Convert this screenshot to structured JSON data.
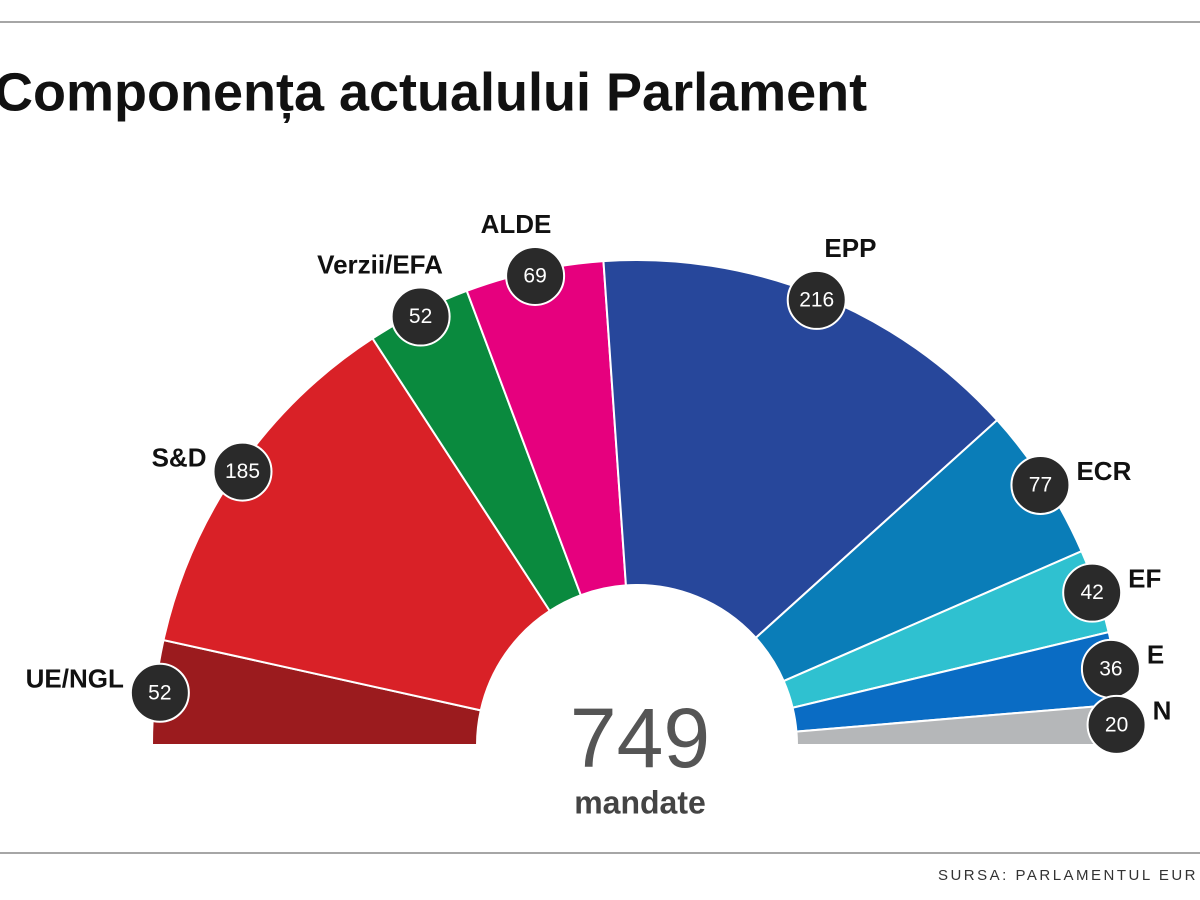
{
  "chart_data": {
    "type": "parliament",
    "title": "Componența actualului Parlament",
    "categories": [
      "UE/NGL",
      "S&D",
      "Verzii/EFA",
      "ALDE",
      "EPP",
      "ECR",
      "EF",
      "E",
      "N"
    ],
    "values": [
      52,
      185,
      52,
      69,
      216,
      77,
      42,
      36,
      20
    ],
    "colors": [
      "#9b1b1e",
      "#d92127",
      "#0a8a3e",
      "#e6007e",
      "#27479b",
      "#0a7db8",
      "#2fc1d0",
      "#0a6cc4",
      "#b5b7b9"
    ],
    "total": 749,
    "total_label": "mandate",
    "source": "SURSA: PARLAMENTUL EUR"
  }
}
